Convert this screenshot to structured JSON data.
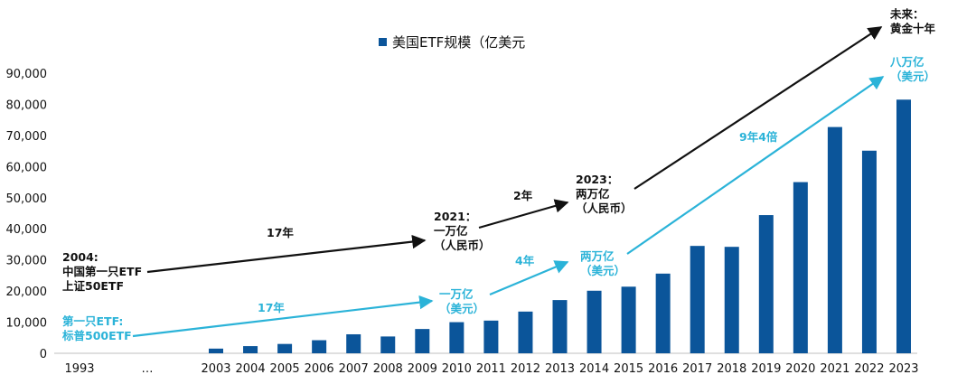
{
  "chart_data": {
    "type": "bar",
    "legend": "美国ETF规模（亿美元",
    "x_labels": [
      "1993",
      "…",
      "2003",
      "2004",
      "2005",
      "2006",
      "2007",
      "2008",
      "2009",
      "2010",
      "2011",
      "2012",
      "2013",
      "2014",
      "2015",
      "2016",
      "2017",
      "2018",
      "2019",
      "2020",
      "2021",
      "2022",
      "2023"
    ],
    "categories": [
      "2003",
      "2004",
      "2005",
      "2006",
      "2007",
      "2008",
      "2009",
      "2010",
      "2011",
      "2012",
      "2013",
      "2014",
      "2015",
      "2016",
      "2017",
      "2018",
      "2019",
      "2020",
      "2021",
      "2022",
      "2023"
    ],
    "values": [
      1500,
      2300,
      3000,
      4200,
      6100,
      5400,
      7800,
      10000,
      10500,
      13400,
      17100,
      20100,
      21400,
      25600,
      34500,
      34200,
      44400,
      55000,
      72700,
      65100,
      81500
    ],
    "ylim": [
      0,
      90000
    ],
    "yticks": [
      "0",
      "10,000",
      "20,000",
      "30,000",
      "40,000",
      "50,000",
      "60,000",
      "70,000",
      "80,000",
      "90,000"
    ],
    "bar_color": "#0B559A",
    "annotations": {
      "start_china": [
        "2004:",
        "中国第一只ETF",
        "上证50ETF"
      ],
      "start_us": [
        "第一只ETF:",
        "标普500ETF"
      ],
      "china_2021": [
        "2021：",
        "一万亿",
        "（人民币）"
      ],
      "china_2023": [
        "2023：",
        "两万亿",
        "（人民币）"
      ],
      "future": [
        "未来：",
        "黄金十年"
      ],
      "us_10k": [
        "一万亿",
        "（美元）"
      ],
      "us_20k": [
        "两万亿",
        "（美元）"
      ],
      "us_80k": [
        "八万亿",
        "（美元）"
      ],
      "gap_17_black": "17年",
      "gap_2": "2年",
      "gap_17_blue": "17年",
      "gap_4": "4年",
      "gap_9_4": "9年4倍"
    },
    "colors": {
      "black_line": "#111111",
      "blue_line": "#2BB3D8"
    }
  }
}
